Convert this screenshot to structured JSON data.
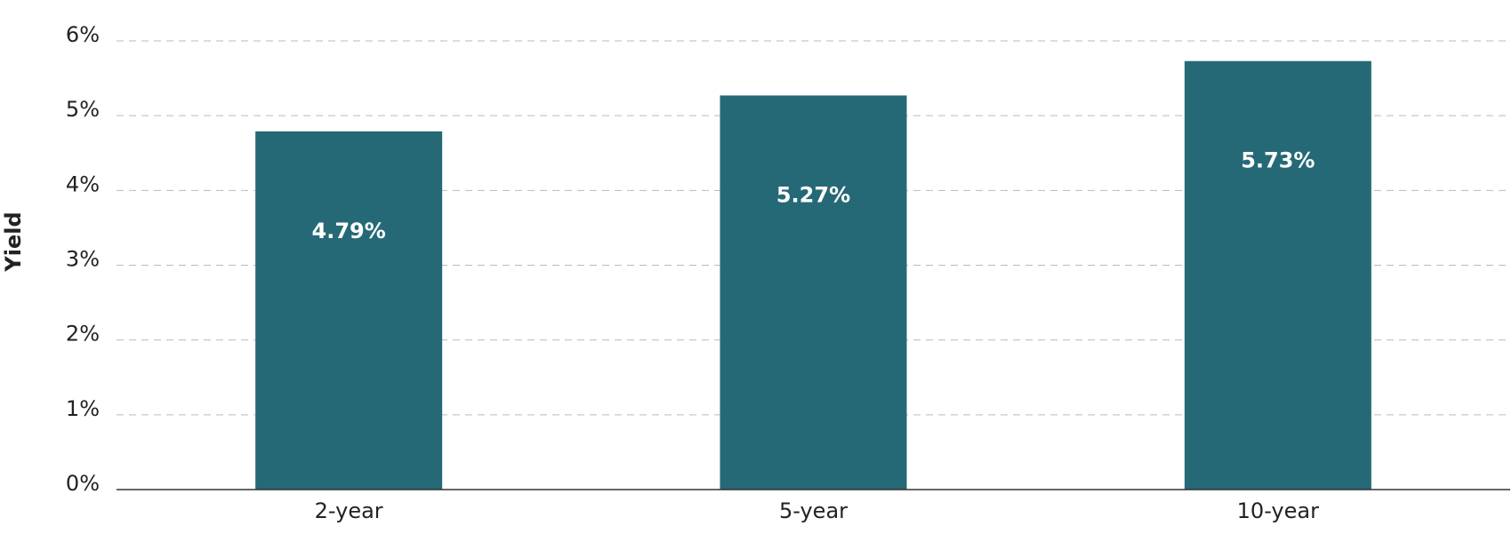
{
  "chart_data": {
    "type": "bar",
    "y_label": "Yield",
    "categories": [
      "2-year",
      "5-year",
      "10-year"
    ],
    "values": [
      4.79,
      5.27,
      5.73
    ],
    "value_labels": [
      "4.79%",
      "5.27%",
      "5.73%"
    ],
    "color": "#266976",
    "ylim": [
      0,
      6
    ],
    "yticks": [
      {
        "value": 0,
        "label": "0%"
      },
      {
        "value": 1,
        "label": "1%"
      },
      {
        "value": 2,
        "label": "2%"
      },
      {
        "value": 3,
        "label": "3%"
      },
      {
        "value": 4,
        "label": "4%"
      },
      {
        "value": 5,
        "label": "5%"
      },
      {
        "value": 6,
        "label": "6%"
      }
    ],
    "grid": true
  }
}
